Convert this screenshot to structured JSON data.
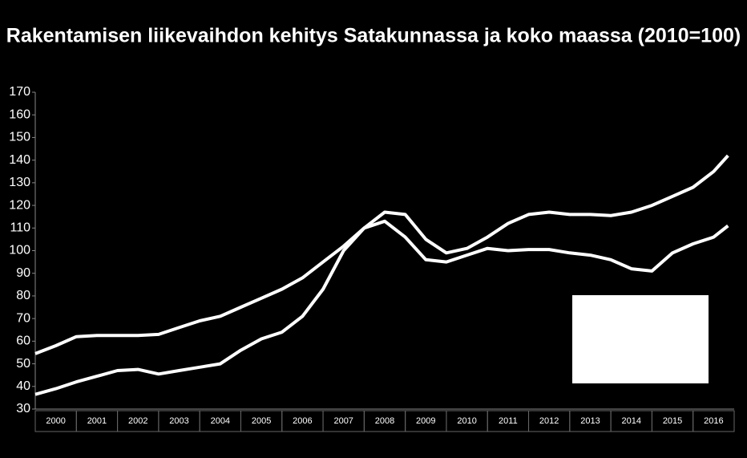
{
  "chart_data": {
    "type": "line",
    "title": "Rakentamisen liikevaihdon kehitys Satakunnassa ja koko maassa (2010=100)",
    "categories": [
      "2000",
      "2001",
      "2002",
      "2003",
      "2004",
      "2005",
      "2006",
      "2007",
      "2008",
      "2009",
      "2010",
      "2011",
      "2012",
      "2013",
      "2014",
      "2015",
      "2016"
    ],
    "x": [
      2000,
      2000.5,
      2001,
      2001.5,
      2002,
      2002.5,
      2003,
      2003.5,
      2004,
      2004.5,
      2005,
      2005.5,
      2006,
      2006.5,
      2007,
      2007.5,
      2008,
      2008.5,
      2009,
      2009.5,
      2010,
      2010.5,
      2011,
      2011.5,
      2012,
      2012.5,
      2013,
      2013.5,
      2014,
      2014.5,
      2015,
      2015.5,
      2016,
      2016.5,
      2016.85
    ],
    "xlim": [
      2000,
      2017
    ],
    "series": [
      {
        "color": "#ffffff",
        "values": [
          54.5,
          58,
          62,
          62.5,
          62.5,
          62.5,
          63,
          66,
          69,
          71,
          75,
          79,
          83,
          88,
          95,
          102,
          110,
          117,
          116,
          105,
          99,
          101,
          106,
          112,
          116,
          117,
          116,
          116,
          115.5,
          117,
          120,
          124,
          128,
          135,
          142
        ]
      },
      {
        "color": "#ffffff",
        "values": [
          36.5,
          39,
          42,
          44.5,
          47,
          47.5,
          45.5,
          47,
          48.5,
          50,
          56,
          61,
          64,
          71,
          83,
          100,
          110,
          113,
          106,
          96,
          95,
          98,
          101,
          100,
          100.5,
          100.5,
          99,
          98,
          96,
          92,
          91,
          99,
          103,
          106,
          111
        ]
      }
    ],
    "ylim": [
      30,
      170
    ],
    "yticks": [
      30,
      40,
      50,
      60,
      70,
      80,
      90,
      100,
      110,
      120,
      130,
      140,
      150,
      160,
      170
    ]
  }
}
